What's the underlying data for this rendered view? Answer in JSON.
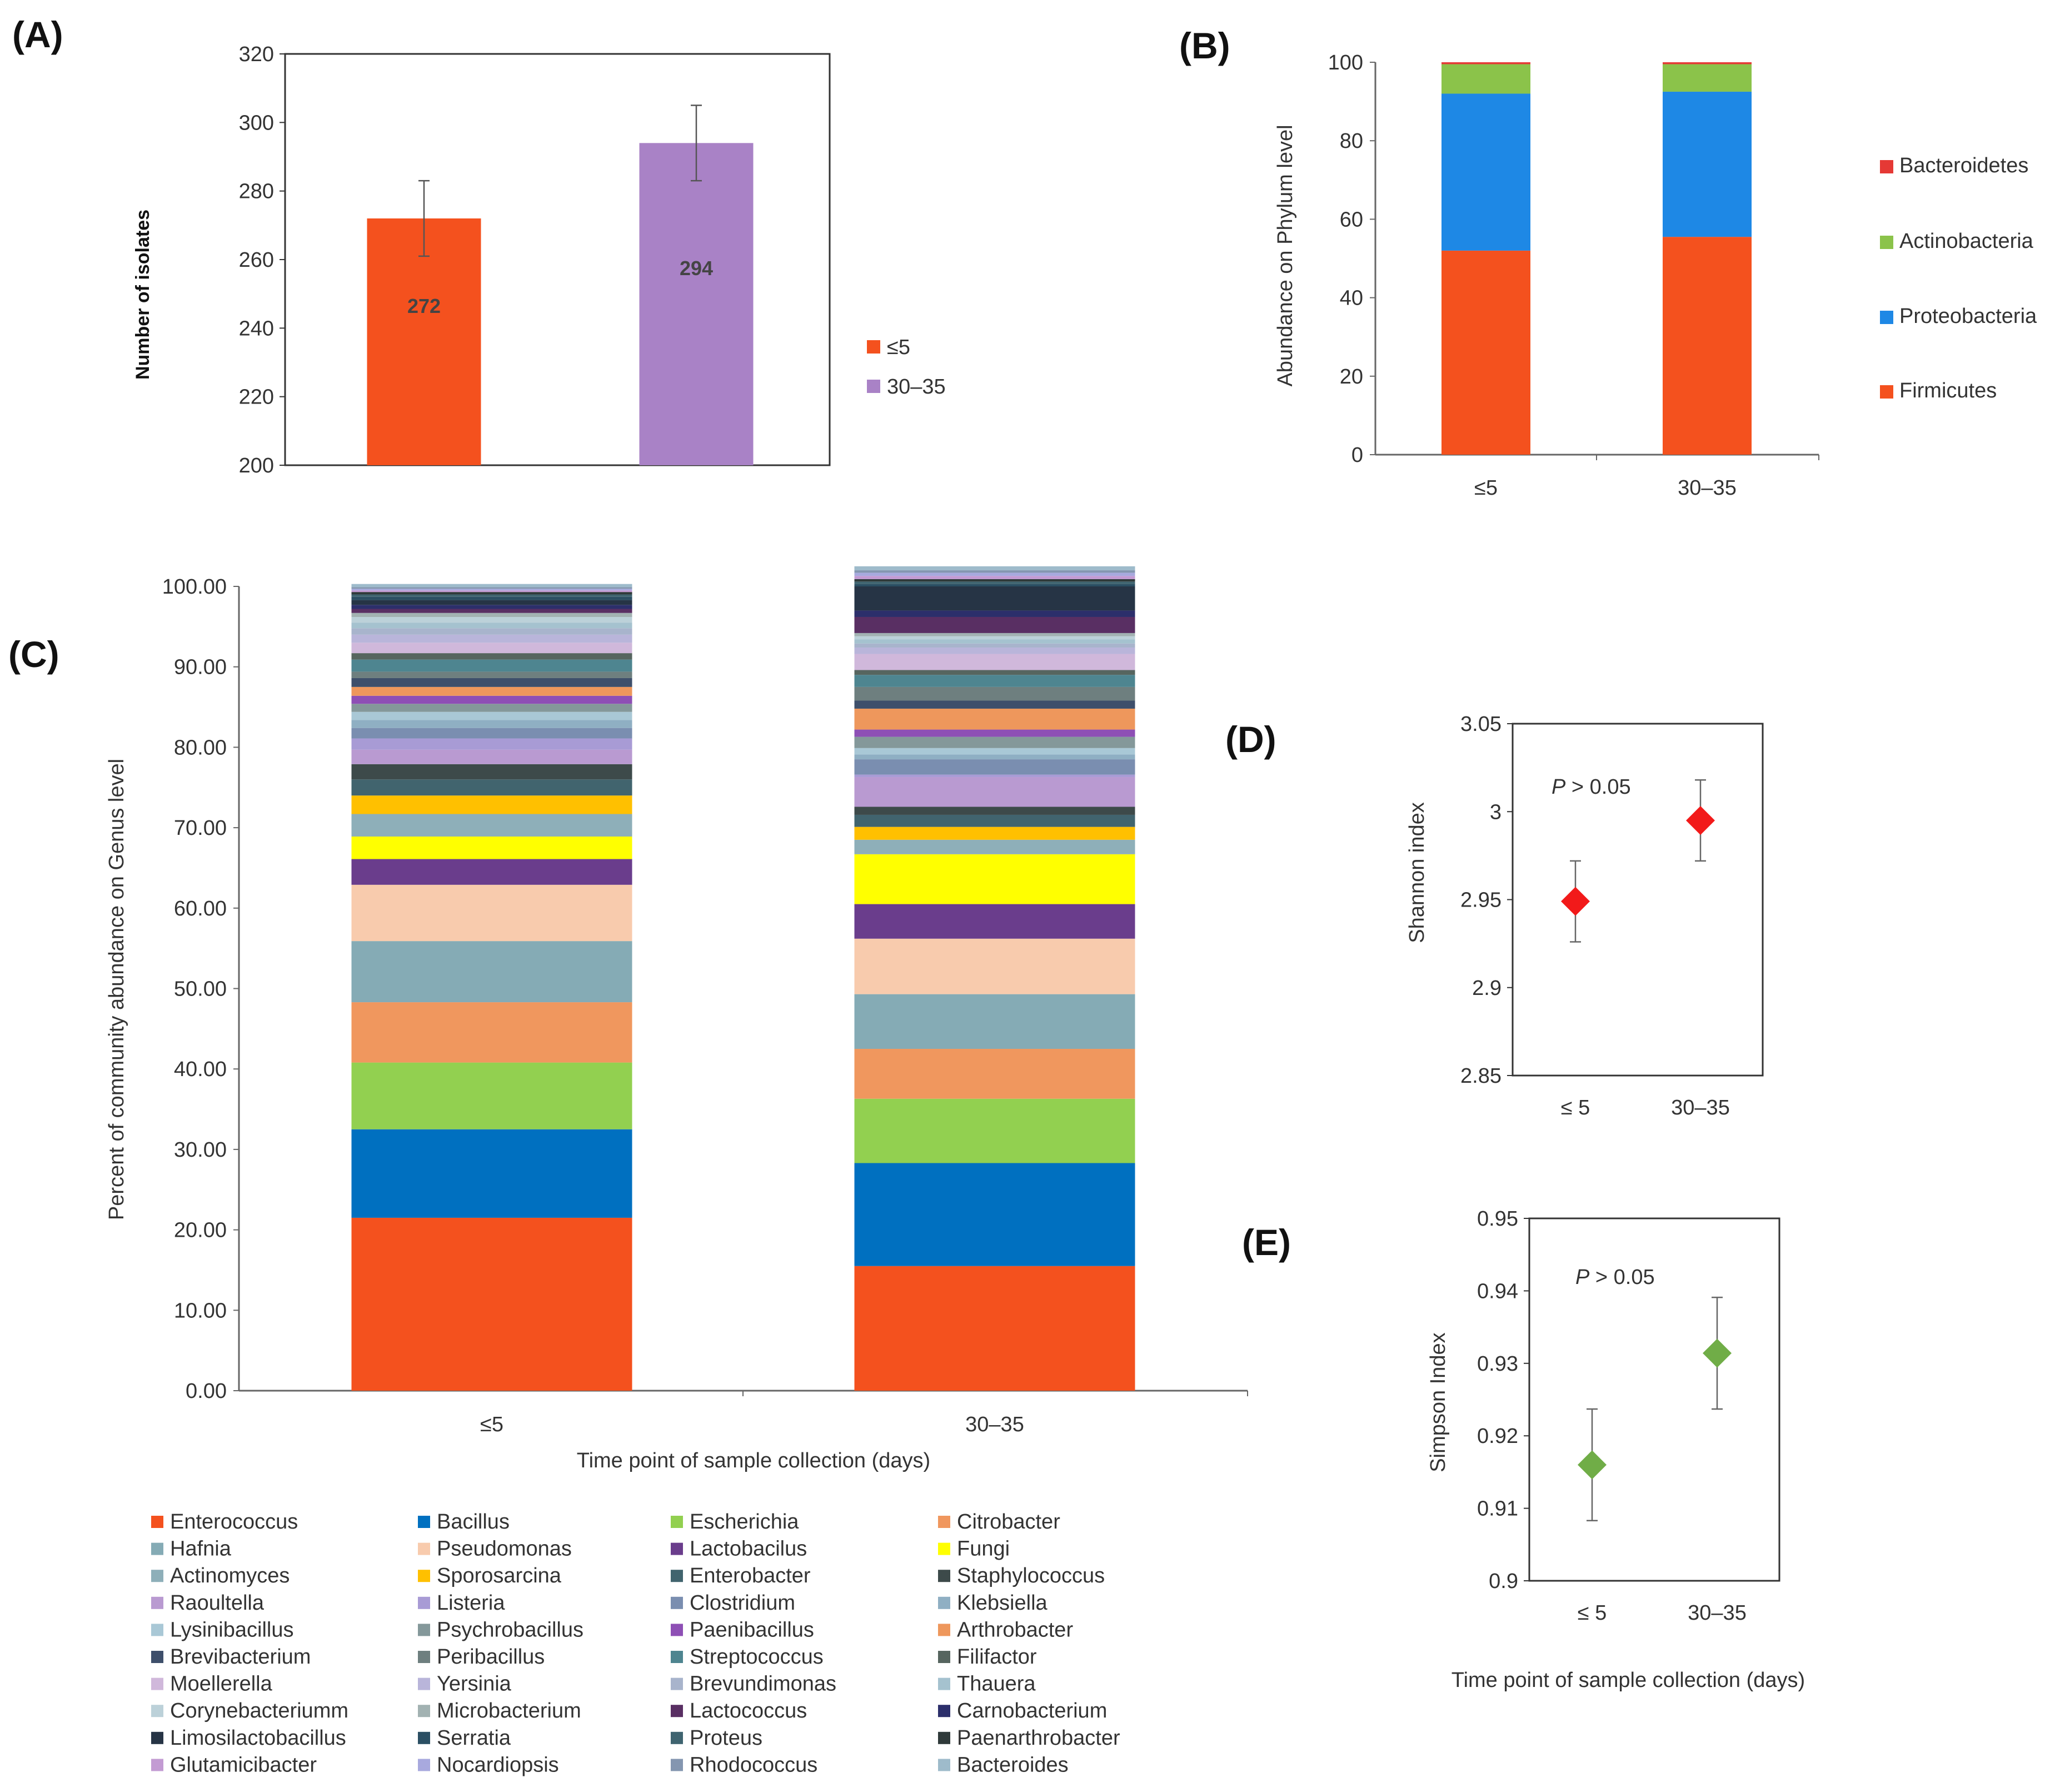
{
  "colors": {
    "orange": "#F4511E",
    "purple": "#A982C6",
    "firmicutes": "#F4511E",
    "proteobacteria": "#1E88E5",
    "actinobacteria": "#8BC34A",
    "bacteroidetes": "#E53935",
    "shannon": "#F21A1A",
    "simpson": "#70AD47"
  },
  "chart_data": [
    {
      "id": "A",
      "panel_label": "(A)",
      "type": "bar",
      "categories": [
        "≤5",
        "30–35"
      ],
      "values": [
        272,
        294
      ],
      "errors": [
        11,
        11
      ],
      "data_labels": [
        "272",
        "294"
      ],
      "ylabel": "Number of isolates",
      "ylim": [
        200,
        320
      ],
      "yticks": [
        "200",
        "220",
        "240",
        "260",
        "280",
        "300",
        "320"
      ],
      "legend": [
        "≤5",
        "30–35"
      ],
      "legend_position": "right"
    },
    {
      "id": "B",
      "panel_label": "(B)",
      "type": "bar",
      "stacked": true,
      "categories": [
        "≤5",
        "30–35"
      ],
      "ylabel": "Abundance on Phylum  level",
      "ylim": [
        0,
        100
      ],
      "yticks": [
        "0",
        "20",
        "40",
        "60",
        "80",
        "100"
      ],
      "series": [
        {
          "name": "Firmicutes",
          "values": [
            52.0,
            55.5
          ]
        },
        {
          "name": "Proteobacteria",
          "values": [
            40.0,
            37.0
          ]
        },
        {
          "name": "Actinobacteria",
          "values": [
            7.5,
            7.0
          ]
        },
        {
          "name": "Bacteroidetes",
          "values": [
            0.5,
            0.5
          ]
        }
      ],
      "legend_order": [
        "Bacteroidetes",
        "Actinobacteria",
        "Proteobacteria",
        "Firmicutes"
      ],
      "legend_position": "right"
    },
    {
      "id": "C",
      "panel_label": "(C)",
      "type": "bar",
      "stacked": true,
      "categories": [
        "≤5",
        "30–35"
      ],
      "xlabel": "Time point of sample collection (days)",
      "ylabel": "Percent of community abundance on Genus level",
      "ylim": [
        0,
        100
      ],
      "yticks": [
        "0.00",
        "10.00",
        "20.00",
        "30.00",
        "40.00",
        "50.00",
        "60.00",
        "70.00",
        "80.00",
        "90.00",
        "100.00"
      ],
      "series": [
        {
          "name": "Enterococcus",
          "color": "#F4511E",
          "values": [
            21.5,
            15.5
          ]
        },
        {
          "name": "Bacillus",
          "color": "#0070C0",
          "values": [
            11.0,
            12.8
          ]
        },
        {
          "name": "Escherichia",
          "color": "#92D050",
          "values": [
            8.3,
            8.0
          ]
        },
        {
          "name": "Citrobacter",
          "color": "#F0975E",
          "values": [
            7.5,
            6.2
          ]
        },
        {
          "name": "Hafnia",
          "color": "#85ABB5",
          "values": [
            7.6,
            6.8
          ]
        },
        {
          "name": "Pseudomonas",
          "color": "#F8CBAD",
          "values": [
            7.0,
            6.9
          ]
        },
        {
          "name": "Lactobacilus",
          "color": "#6A3D8C",
          "values": [
            3.2,
            4.3
          ]
        },
        {
          "name": "Fungi",
          "color": "#FFFF00",
          "values": [
            2.8,
            6.2
          ]
        },
        {
          "name": "Actinomyces",
          "color": "#8EAFB9",
          "values": [
            2.8,
            1.8
          ]
        },
        {
          "name": "Sporosarcina",
          "color": "#FFC000",
          "values": [
            2.3,
            1.6
          ]
        },
        {
          "name": "Enterobacter",
          "color": "#41646E",
          "values": [
            2.0,
            1.5
          ]
        },
        {
          "name": "Staphylococcus",
          "color": "#3D4A4A",
          "values": [
            1.9,
            1.0
          ]
        },
        {
          "name": "Raoultella",
          "color": "#B99AD1",
          "values": [
            1.8,
            3.7
          ]
        },
        {
          "name": "Listeria",
          "color": "#A89BD5",
          "values": [
            1.4,
            0.3
          ]
        },
        {
          "name": "Clostridium",
          "color": "#7A8EB0",
          "values": [
            1.3,
            1.9
          ]
        },
        {
          "name": "Klebsiella",
          "color": "#8FAFC3",
          "values": [
            1.0,
            0.6
          ]
        },
        {
          "name": "Lysinibacillus",
          "color": "#A9C8D6",
          "values": [
            1.0,
            0.8
          ]
        },
        {
          "name": "Psychrobacillus",
          "color": "#84989A",
          "values": [
            1.0,
            1.4
          ]
        },
        {
          "name": "Paenibacillus",
          "color": "#8E4FB5",
          "values": [
            1.0,
            0.9
          ]
        },
        {
          "name": "Arthrobacter",
          "color": "#EE975C",
          "values": [
            1.1,
            2.6
          ]
        },
        {
          "name": "Brevibacterium",
          "color": "#3E4F6B",
          "values": [
            1.1,
            1.0
          ]
        },
        {
          "name": "Peribacillus",
          "color": "#6E7F7F",
          "values": [
            0.8,
            1.7
          ]
        },
        {
          "name": "Streptococcus",
          "color": "#4E8590",
          "values": [
            1.5,
            1.5
          ]
        },
        {
          "name": "Filifactor",
          "color": "#56655F",
          "values": [
            0.8,
            0.6
          ]
        },
        {
          "name": "Moellerella",
          "color": "#D0B8DB",
          "values": [
            1.3,
            2.0
          ]
        },
        {
          "name": "Yersinia",
          "color": "#B9B5DA",
          "values": [
            1.0,
            0.8
          ]
        },
        {
          "name": "Brevundimonas",
          "color": "#A8B4CC",
          "values": [
            0.8,
            0.5
          ]
        },
        {
          "name": "Thauera",
          "color": "#A5C2CF",
          "values": [
            0.7,
            0.5
          ]
        },
        {
          "name": "Corynebacteriumm",
          "color": "#BCD1D9",
          "values": [
            0.7,
            0.4
          ]
        },
        {
          "name": "Microbacterium",
          "color": "#A2B2B2",
          "values": [
            0.5,
            0.4
          ]
        },
        {
          "name": "Lactococcus",
          "color": "#592F63",
          "values": [
            0.5,
            2.0
          ]
        },
        {
          "name": "Carnobacterium",
          "color": "#2C2F6B",
          "values": [
            0.5,
            0.8
          ]
        },
        {
          "name": "Limosilactobacillus",
          "color": "#263445",
          "values": [
            0.6,
            3.0
          ]
        },
        {
          "name": "Serratia",
          "color": "#2B4F63",
          "values": [
            0.4,
            0.3
          ]
        },
        {
          "name": "Proteus",
          "color": "#3F6470",
          "values": [
            0.3,
            0.3
          ]
        },
        {
          "name": "Paenarthrobacter",
          "color": "#2F3A3A",
          "values": [
            0.3,
            0.3
          ]
        },
        {
          "name": "Glutamicibacter",
          "color": "#C39BD3",
          "values": [
            0.2,
            0.4
          ]
        },
        {
          "name": "Nocardiopsis",
          "color": "#A8A9DE",
          "values": [
            0.2,
            0.4
          ]
        },
        {
          "name": "Rhodococcus",
          "color": "#8496B0",
          "values": [
            0.2,
            0.3
          ]
        },
        {
          "name": "Bacteroides",
          "color": "#9EBBCB",
          "values": [
            0.4,
            0.5
          ]
        }
      ]
    },
    {
      "id": "D",
      "panel_label": "(D)",
      "type": "scatter",
      "categories": [
        "≤ 5",
        "30–35"
      ],
      "values": [
        2.949,
        2.995
      ],
      "errors": [
        0.023,
        0.023
      ],
      "ylabel": "Shannon index",
      "ylim": [
        2.85,
        3.05
      ],
      "yticks": [
        "2.85",
        "2.9",
        "2.95",
        "3",
        "3.05"
      ],
      "annotation": {
        "italic": "P",
        "rest": " > 0.05"
      }
    },
    {
      "id": "E",
      "panel_label": "(E)",
      "type": "scatter",
      "categories": [
        "≤ 5",
        "30–35"
      ],
      "values": [
        0.916,
        0.9314
      ],
      "errors": [
        0.0077,
        0.0077
      ],
      "xlabel": "Time point of sample collection (days)",
      "ylabel": "Simpson Index",
      "ylim": [
        0.9,
        0.95
      ],
      "yticks": [
        "0.9",
        "0.91",
        "0.92",
        "0.93",
        "0.94",
        "0.95"
      ],
      "annotation": {
        "italic": "P",
        "rest": " > 0.05"
      }
    }
  ]
}
